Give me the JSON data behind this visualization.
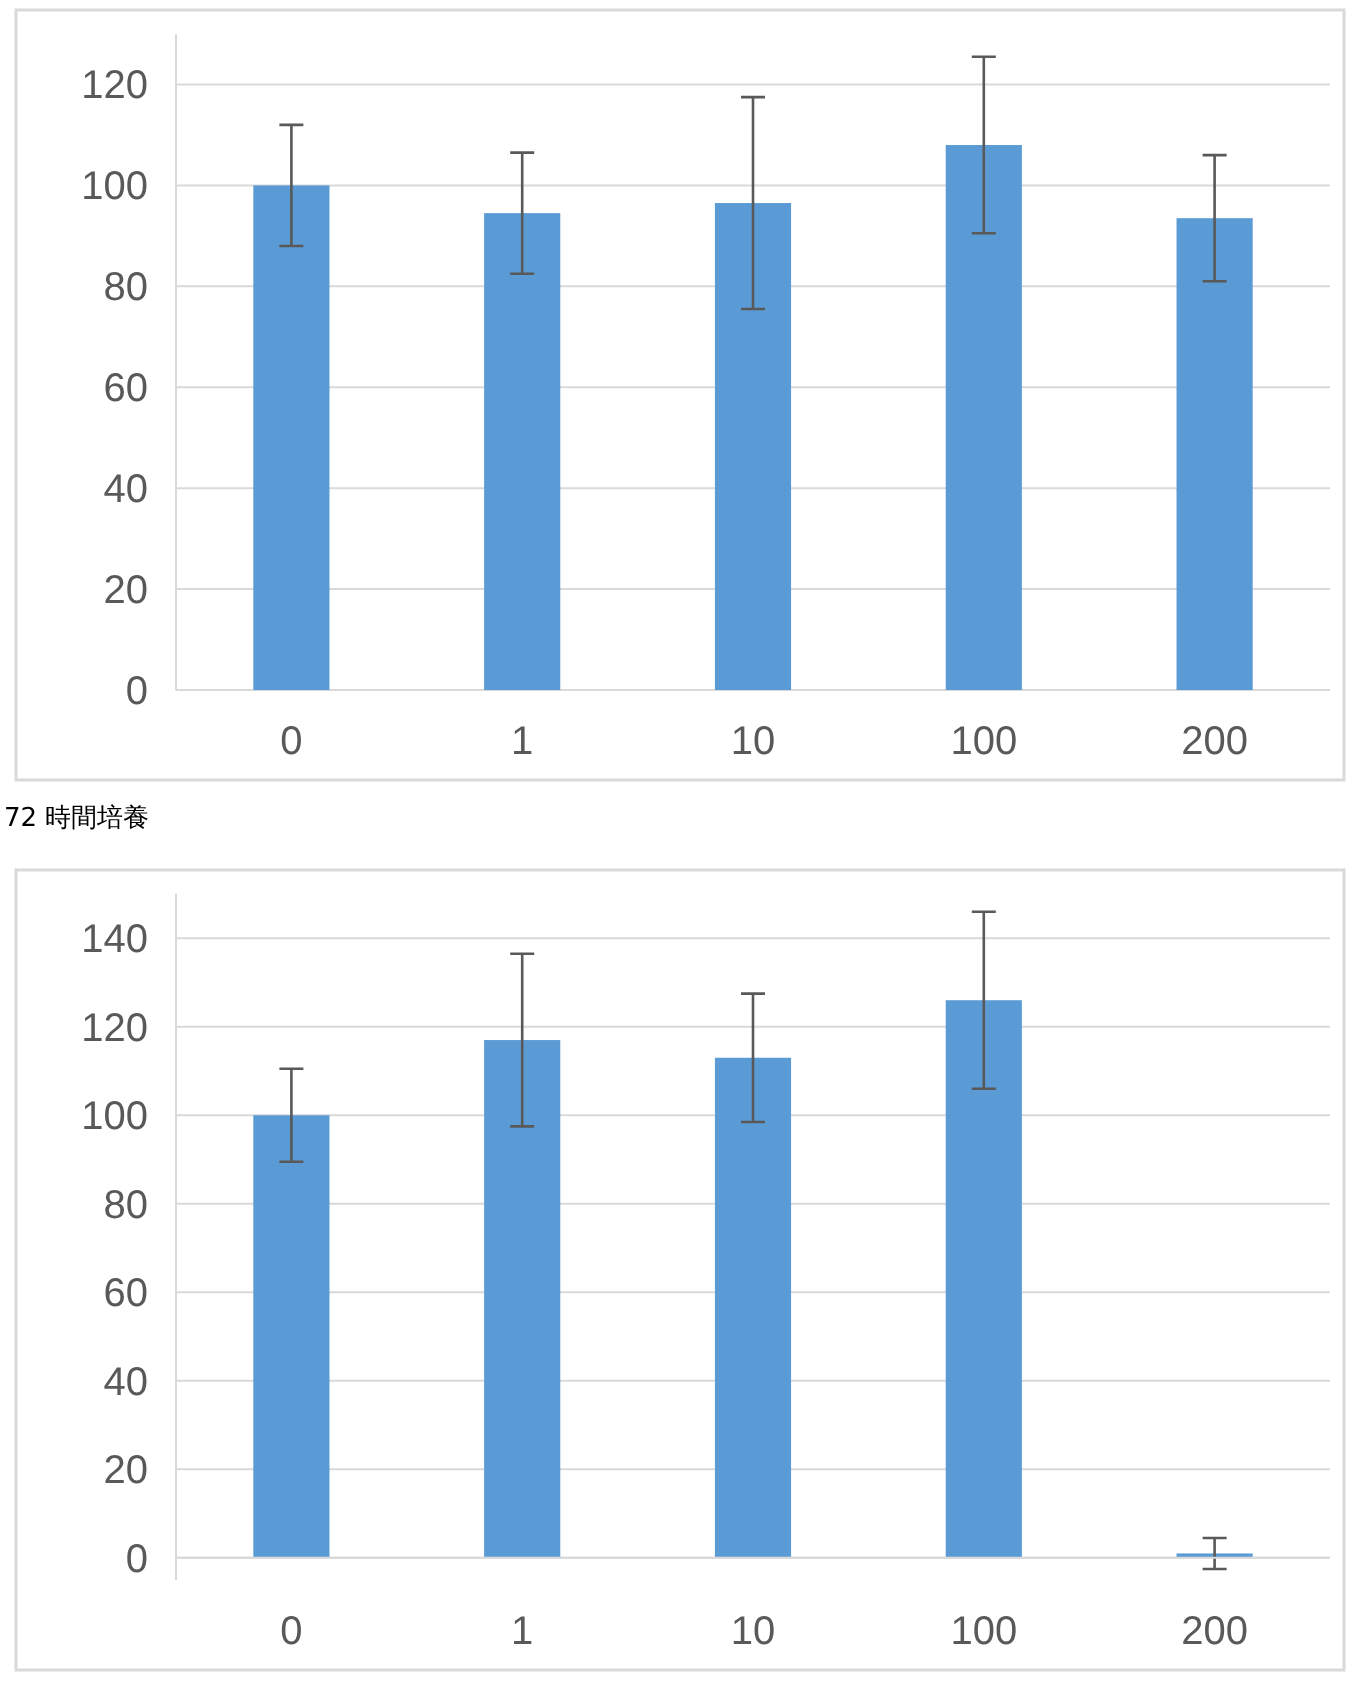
{
  "chart_data": [
    {
      "type": "bar",
      "categories": [
        "0",
        "1",
        "10",
        "100",
        "200"
      ],
      "series": [
        {
          "color": "#5b9bd5",
          "values": [
            100,
            94.5,
            96.5,
            108,
            93.5
          ],
          "errors": [
            12,
            12,
            21,
            17.5,
            12.5
          ]
        }
      ],
      "ylim": [
        0,
        130
      ],
      "yticks": [
        0,
        20,
        40,
        60,
        80,
        100,
        120
      ],
      "grid": "y"
    },
    {
      "type": "bar",
      "title": "72 時間培養",
      "categories": [
        "0",
        "1",
        "10",
        "100",
        "200"
      ],
      "series": [
        {
          "color": "#5b9bd5",
          "values": [
            100,
            117,
            113,
            126,
            1
          ],
          "errors": [
            10.5,
            19.5,
            14.5,
            20,
            3.5
          ]
        }
      ],
      "ylim": [
        -5,
        150
      ],
      "yticks": [
        0,
        20,
        40,
        60,
        80,
        100,
        120,
        140
      ],
      "grid": "y"
    }
  ]
}
